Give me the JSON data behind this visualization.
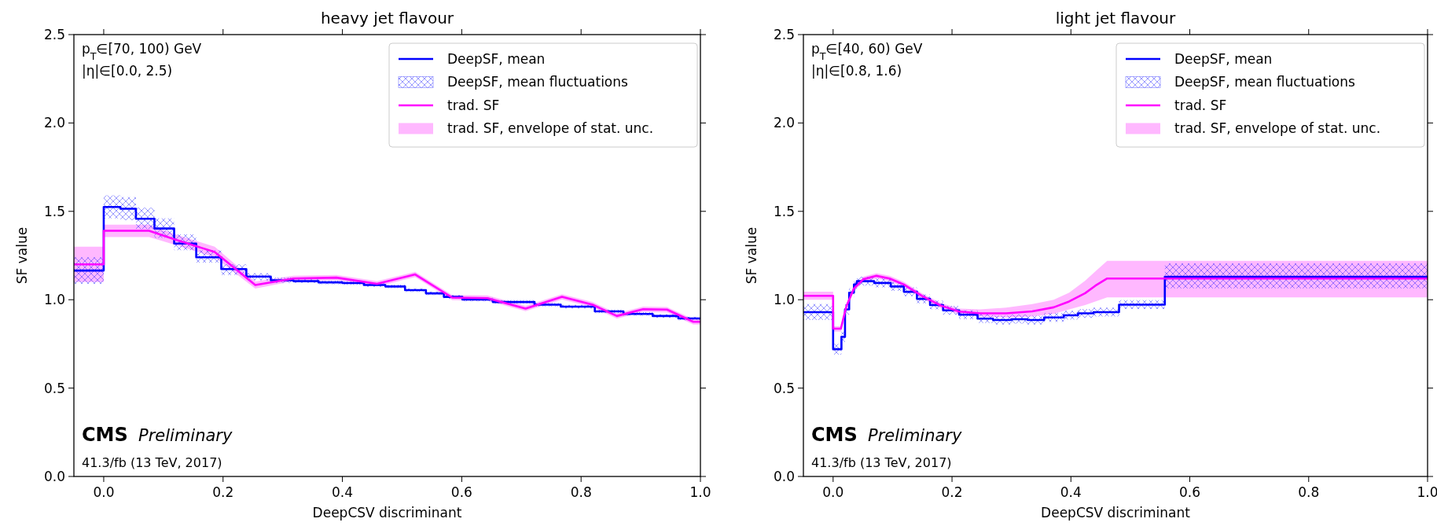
{
  "chart_data": [
    {
      "type": "step",
      "title": "heavy jet flavour",
      "xlabel": "DeepCSV discriminant",
      "ylabel": "SF value",
      "xlim": [
        -0.05,
        1.0
      ],
      "ylim": [
        0,
        2.5
      ],
      "xticks": [
        {
          "value": 0,
          "label": "0.0"
        },
        {
          "value": 0.2,
          "label": "0.2"
        },
        {
          "value": 0.4,
          "label": "0.4"
        },
        {
          "value": 0.6,
          "label": "0.6"
        },
        {
          "value": 0.8,
          "label": "0.8"
        },
        {
          "value": 1,
          "label": "1.0"
        }
      ],
      "yticks": [
        {
          "value": 0,
          "label": "0.0"
        },
        {
          "value": 0.5,
          "label": "0.5"
        },
        {
          "value": 1,
          "label": "1.0"
        },
        {
          "value": 1.5,
          "label": "1.5"
        },
        {
          "value": 2,
          "label": "2.0"
        },
        {
          "value": 2.5,
          "label": "2.5"
        }
      ],
      "legend": "top right",
      "annotations": [
        "p$_{T}$∈[70, 100) GeV",
        "|η|∈[0.0, 2.5)",
        "CMS",
        "Preliminary",
        "41.3/fb (13 TeV, 2017)",
        "DeepSF, mean fluctuations",
        "trad. SF, envelope of stat. unc."
      ],
      "series": [
        {
          "name": "DeepSF, mean",
          "color": "#0000ff",
          "x": [
            -0.05,
            0,
            0.028,
            0.054,
            0.085,
            0.118,
            0.155,
            0.197,
            0.239,
            0.28,
            0.318,
            0.36,
            0.4,
            0.436,
            0.472,
            0.505,
            0.54,
            0.57,
            0.601,
            0.652,
            0.722,
            0.766,
            0.823,
            0.871,
            0.92,
            0.963,
            1.0
          ],
          "values": [
            1.165,
            1.525,
            1.515,
            1.458,
            1.403,
            1.318,
            1.24,
            1.173,
            1.131,
            1.11,
            1.105,
            1.098,
            1.094,
            1.083,
            1.075,
            1.054,
            1.036,
            1.016,
            1.001,
            0.987,
            0.972,
            0.961,
            0.934,
            0.92,
            0.908,
            0.894,
            0.894
          ],
          "lower": [
            1.09,
            1.46,
            1.45,
            1.4,
            1.35,
            1.28,
            1.21,
            1.14,
            1.11,
            1.095,
            1.095,
            1.088,
            1.084,
            1.073,
            1.065,
            1.044,
            1.026,
            1.006,
            0.991,
            0.977,
            0.962,
            0.951,
            0.924,
            0.91,
            0.898,
            0.884,
            0.884
          ],
          "upper": [
            1.24,
            1.59,
            1.58,
            1.52,
            1.46,
            1.37,
            1.28,
            1.2,
            1.15,
            1.125,
            1.115,
            1.108,
            1.104,
            1.093,
            1.085,
            1.064,
            1.046,
            1.026,
            1.011,
            0.997,
            0.982,
            0.971,
            0.944,
            0.93,
            0.918,
            0.904,
            0.904
          ]
        },
        {
          "name": "trad. SF",
          "type": "line",
          "color": "#ff00ff",
          "x": [
            -0.05,
            0,
            0,
            0.076,
            0.12,
            0.186,
            0.254,
            0.318,
            0.39,
            0.458,
            0.522,
            0.584,
            0.643,
            0.707,
            0.768,
            0.819,
            0.86,
            0.904,
            0.944,
            0.988,
            1.0
          ],
          "values": [
            1.2,
            1.2,
            1.39,
            1.39,
            1.34,
            1.27,
            1.083,
            1.12,
            1.125,
            1.09,
            1.143,
            1.012,
            1.009,
            0.95,
            1.016,
            0.972,
            0.908,
            0.946,
            0.944,
            0.875,
            0.875
          ],
          "lower": [
            1.1,
            1.1,
            1.355,
            1.355,
            1.31,
            1.24,
            1.063,
            1.105,
            1.11,
            1.075,
            1.128,
            0.997,
            0.994,
            0.935,
            1.001,
            0.957,
            0.893,
            0.931,
            0.929,
            0.86,
            0.86
          ],
          "upper": [
            1.3,
            1.3,
            1.425,
            1.425,
            1.37,
            1.3,
            1.103,
            1.135,
            1.14,
            1.105,
            1.158,
            1.027,
            1.024,
            0.965,
            1.031,
            0.987,
            0.923,
            0.961,
            0.959,
            0.89,
            0.89
          ]
        }
      ]
    },
    {
      "type": "step",
      "title": "light jet flavour",
      "xlabel": "DeepCSV discriminant",
      "ylabel": "SF value",
      "xlim": [
        -0.05,
        1.0
      ],
      "ylim": [
        0,
        2.5
      ],
      "xticks": [
        {
          "value": 0,
          "label": "0.0"
        },
        {
          "value": 0.2,
          "label": "0.2"
        },
        {
          "value": 0.4,
          "label": "0.4"
        },
        {
          "value": 0.6,
          "label": "0.6"
        },
        {
          "value": 0.8,
          "label": "0.8"
        },
        {
          "value": 1,
          "label": "1.0"
        }
      ],
      "yticks": [
        {
          "value": 0,
          "label": "0.0"
        },
        {
          "value": 0.5,
          "label": "0.5"
        },
        {
          "value": 1,
          "label": "1.0"
        },
        {
          "value": 1.5,
          "label": "1.5"
        },
        {
          "value": 2,
          "label": "2.0"
        },
        {
          "value": 2.5,
          "label": "2.5"
        }
      ],
      "legend": "top right",
      "annotations": [
        "p$_{T}$∈[40, 60) GeV",
        "|η|∈[0.8, 1.6)",
        "CMS",
        "Preliminary",
        "41.3/fb (13 TeV, 2017)",
        "DeepSF, mean fluctuations",
        "trad. SF, envelope of stat. unc."
      ],
      "series": [
        {
          "name": "DeepSF, mean",
          "color": "#0000ff",
          "x": [
            -0.05,
            0,
            0.014,
            0.02,
            0.027,
            0.035,
            0.04,
            0.069,
            0.097,
            0.119,
            0.141,
            0.163,
            0.185,
            0.212,
            0.243,
            0.269,
            0.3,
            0.327,
            0.355,
            0.388,
            0.412,
            0.438,
            0.481,
            0.558,
            1.0
          ],
          "values": [
            0.93,
            0.72,
            0.79,
            0.945,
            1.04,
            1.086,
            1.105,
            1.095,
            1.075,
            1.045,
            1.005,
            0.97,
            0.94,
            0.915,
            0.893,
            0.885,
            0.89,
            0.885,
            0.9,
            0.912,
            0.923,
            0.93,
            0.972,
            1.13,
            1.13
          ],
          "lower": [
            0.885,
            0.69,
            0.76,
            0.915,
            1.015,
            1.061,
            1.08,
            1.07,
            1.05,
            1.02,
            0.98,
            0.945,
            0.915,
            0.89,
            0.868,
            0.86,
            0.865,
            0.86,
            0.875,
            0.887,
            0.898,
            0.905,
            0.947,
            1.064,
            1.064
          ],
          "upper": [
            0.975,
            0.75,
            0.82,
            0.975,
            1.065,
            1.111,
            1.13,
            1.12,
            1.1,
            1.07,
            1.03,
            0.995,
            0.965,
            0.94,
            0.918,
            0.91,
            0.915,
            0.91,
            0.925,
            0.937,
            0.948,
            0.955,
            0.997,
            1.205,
            1.205
          ]
        },
        {
          "name": "trad. SF",
          "type": "line",
          "color": "#ff00ff",
          "x": [
            -0.05,
            0,
            0,
            0.013,
            0.022,
            0.035,
            0.051,
            0.073,
            0.095,
            0.119,
            0.15,
            0.181,
            0.212,
            0.247,
            0.291,
            0.335,
            0.371,
            0.397,
            0.424,
            0.441,
            0.461,
            1.0
          ],
          "values": [
            1.022,
            1.022,
            0.836,
            0.836,
            0.96,
            1.064,
            1.116,
            1.135,
            1.12,
            1.086,
            1.02,
            0.967,
            0.933,
            0.923,
            0.923,
            0.934,
            0.957,
            0.99,
            1.037,
            1.079,
            1.12,
            1.12
          ],
          "lower": [
            1.0,
            1.0,
            0.82,
            0.82,
            0.945,
            1.049,
            1.101,
            1.12,
            1.105,
            1.071,
            1.005,
            0.952,
            0.918,
            0.905,
            0.9,
            0.905,
            0.92,
            0.945,
            0.97,
            0.99,
            1.013,
            1.013
          ],
          "upper": [
            1.045,
            1.045,
            0.85,
            0.85,
            0.975,
            1.079,
            1.131,
            1.15,
            1.135,
            1.101,
            1.035,
            0.982,
            0.95,
            0.945,
            0.955,
            0.975,
            1.0,
            1.04,
            1.108,
            1.16,
            1.22,
            1.22
          ]
        }
      ]
    }
  ]
}
